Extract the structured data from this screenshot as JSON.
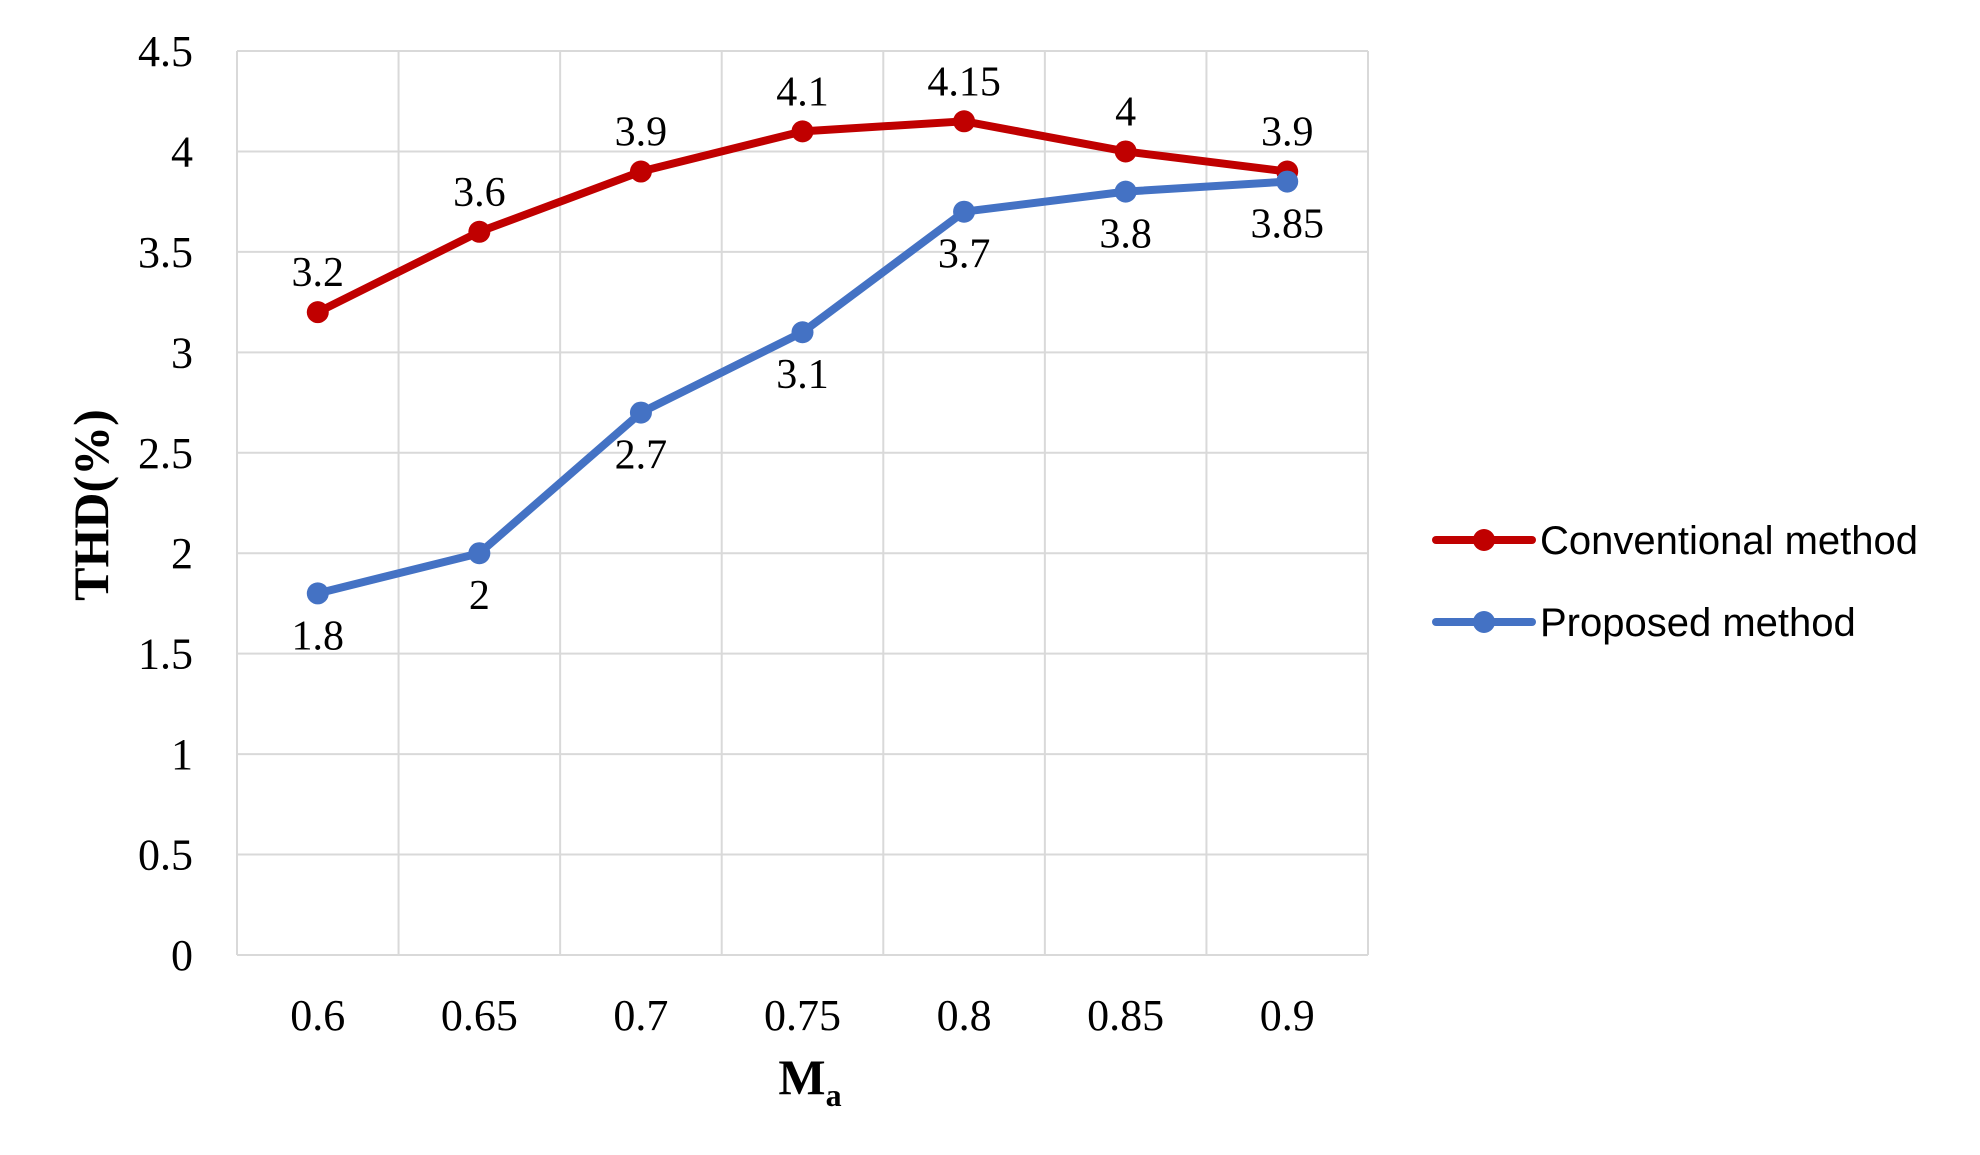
{
  "chart_data": {
    "type": "line",
    "xlabel": "M",
    "xlabel_subscript": "a",
    "ylabel": "THD(%)",
    "categories": [
      "0.6",
      "0.65",
      "0.7",
      "0.75",
      "0.8",
      "0.85",
      "0.9"
    ],
    "ylim": [
      0,
      4.5
    ],
    "yticks": [
      "0",
      "0.5",
      "1",
      "1.5",
      "2",
      "2.5",
      "3",
      "3.5",
      "4",
      "4.5"
    ],
    "grid": true,
    "legend_position": "right",
    "series": [
      {
        "name": "Conventional method",
        "color": "#C00000",
        "values": [
          3.2,
          3.6,
          3.9,
          4.1,
          4.15,
          4.0,
          3.9
        ],
        "labels": [
          "3.2",
          "3.6",
          "3.9",
          "4.1",
          "4.15",
          "4",
          "3.9"
        ],
        "label_position": "above"
      },
      {
        "name": "Proposed method",
        "color": "#4472C4",
        "values": [
          1.8,
          2.0,
          2.7,
          3.1,
          3.7,
          3.8,
          3.85
        ],
        "labels": [
          "1.8",
          "2",
          "2.7",
          "3.1",
          "3.7",
          "3.8",
          "3.85"
        ],
        "label_position": "below"
      }
    ]
  }
}
